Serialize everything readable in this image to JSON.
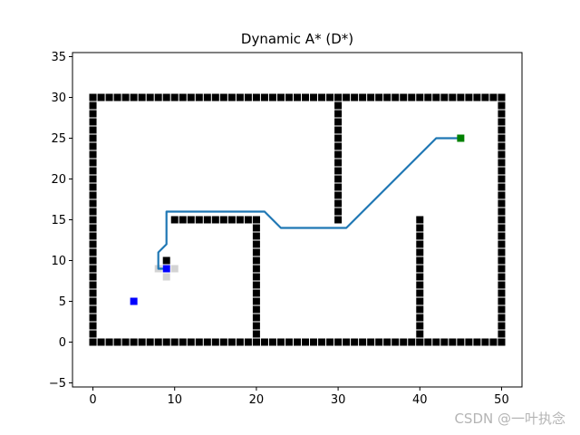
{
  "chart_data": {
    "type": "scatter",
    "title": "Dynamic A* (D*)",
    "xlabel": "",
    "ylabel": "",
    "xlim": [
      -2.5,
      52.5
    ],
    "ylim": [
      -5.5,
      35.5
    ],
    "xticks": [
      0,
      10,
      20,
      30,
      40,
      50
    ],
    "yticks": [
      -5,
      0,
      5,
      10,
      15,
      20,
      25,
      30,
      35
    ],
    "grid": false,
    "colors": {
      "obstacle": "#000000",
      "path": "#1f77b4",
      "start": "#0000ff",
      "goal": "#008000",
      "new_obstacle": "#d3d3d3",
      "current": "#0000ff"
    },
    "series": [
      {
        "role": "obstacles",
        "marker": "square",
        "segments": [
          {
            "x": [
              0,
              50
            ],
            "y": [
              0,
              0
            ]
          },
          {
            "x": [
              0,
              50
            ],
            "y": [
              30,
              30
            ]
          },
          {
            "x": [
              0,
              0
            ],
            "y": [
              0,
              30
            ]
          },
          {
            "x": [
              50,
              50
            ],
            "y": [
              0,
              30
            ]
          },
          {
            "x": [
              10,
              20
            ],
            "y": [
              15,
              15
            ]
          },
          {
            "x": [
              20,
              20
            ],
            "y": [
              0,
              15
            ]
          },
          {
            "x": [
              30,
              30
            ],
            "y": [
              15,
              30
            ]
          },
          {
            "x": [
              40,
              40
            ],
            "y": [
              0,
              15
            ]
          }
        ],
        "points": [
          [
            9,
            10
          ]
        ]
      },
      {
        "role": "new-obstacles",
        "marker": "square",
        "points": [
          [
            8,
            9
          ],
          [
            9,
            9
          ],
          [
            10,
            9
          ],
          [
            9,
            8
          ]
        ]
      },
      {
        "role": "path",
        "marker": "line",
        "x": [
          45,
          42,
          31,
          23,
          21,
          9,
          9,
          8,
          8,
          9
        ],
        "y": [
          25,
          25,
          14,
          14,
          16,
          16,
          12,
          11,
          9,
          9
        ]
      },
      {
        "role": "start",
        "marker": "square",
        "points": [
          [
            5,
            5
          ]
        ]
      },
      {
        "role": "current-position",
        "marker": "square",
        "points": [
          [
            9,
            9
          ]
        ]
      },
      {
        "role": "goal",
        "marker": "square",
        "points": [
          [
            45,
            25
          ]
        ]
      }
    ]
  },
  "watermark": "CSDN @一叶执念"
}
